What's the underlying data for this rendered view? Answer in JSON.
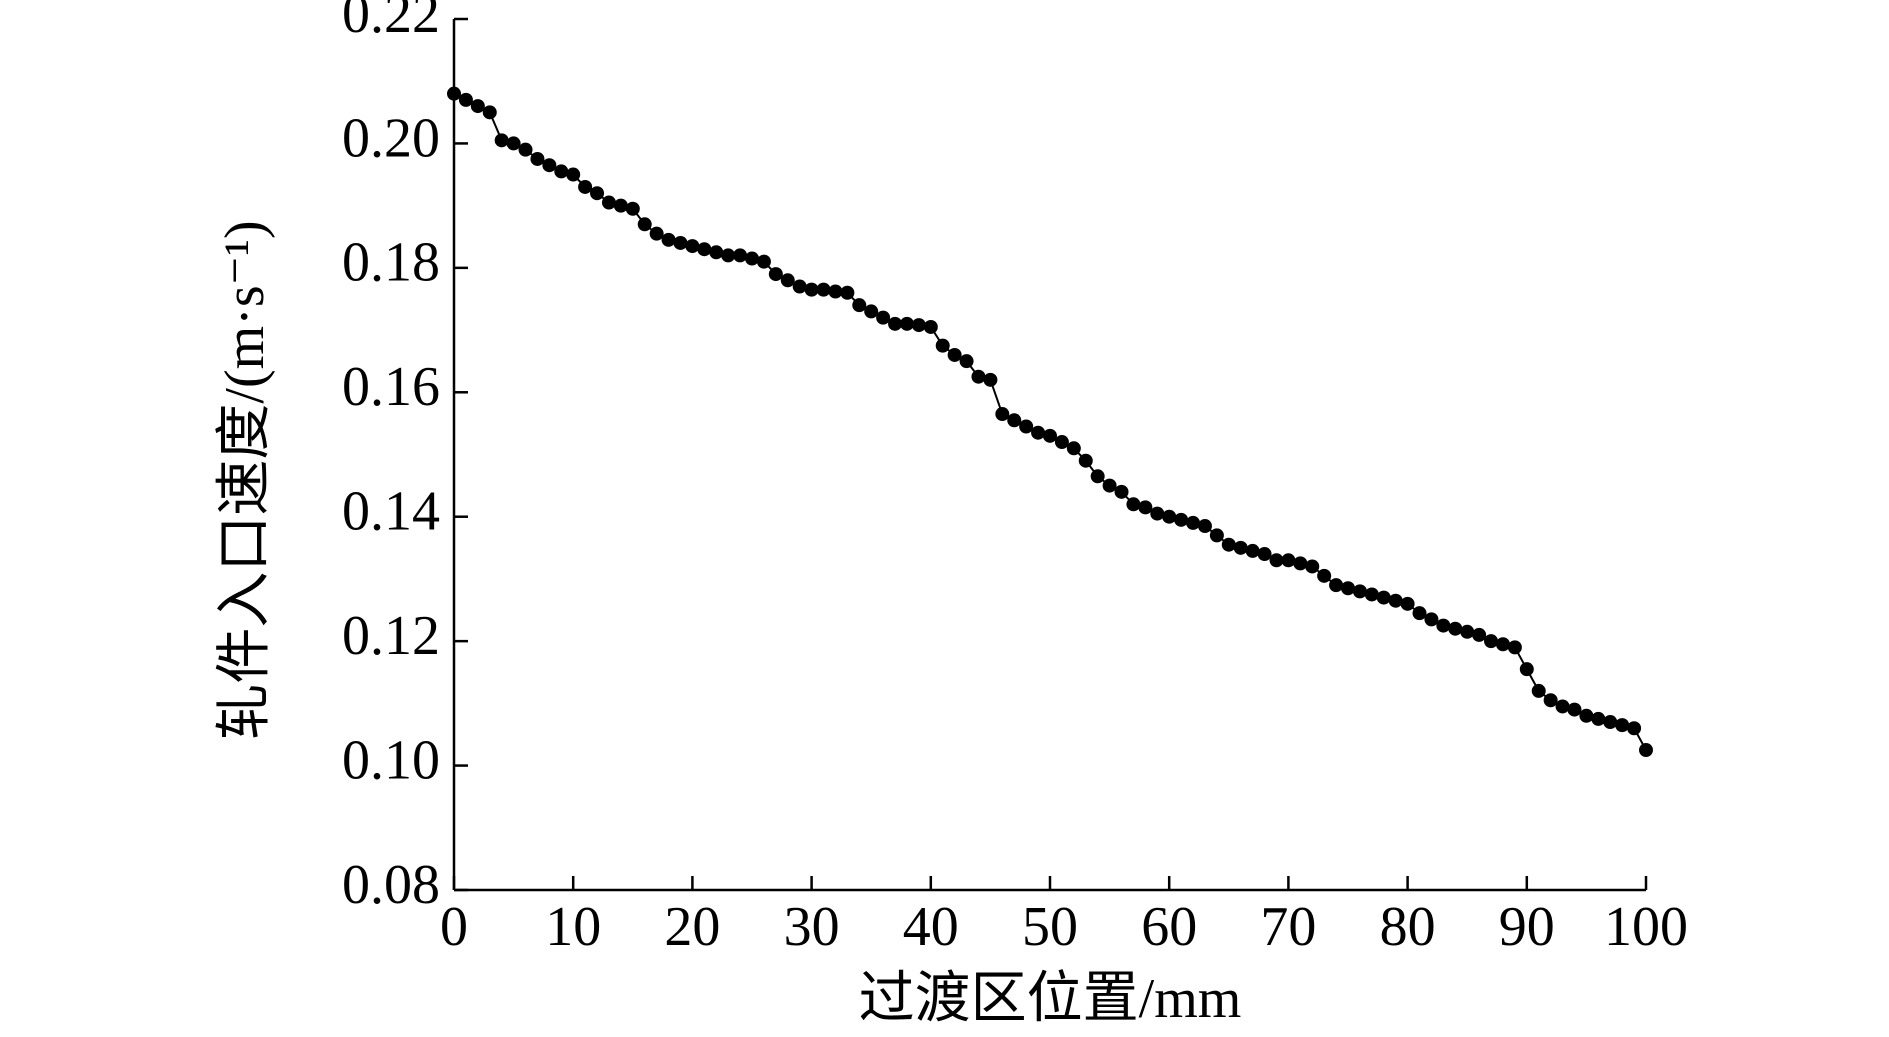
{
  "chart_data": {
    "type": "line",
    "x_label": "过渡区位置/mm",
    "y_label": "轧件入口速度/(m·s⁻¹)",
    "x": [
      0,
      1,
      2,
      3,
      4,
      5,
      6,
      7,
      8,
      9,
      10,
      11,
      12,
      13,
      14,
      15,
      16,
      17,
      18,
      19,
      20,
      21,
      22,
      23,
      24,
      25,
      26,
      27,
      28,
      29,
      30,
      31,
      32,
      33,
      34,
      35,
      36,
      37,
      38,
      39,
      40,
      41,
      42,
      43,
      44,
      45,
      46,
      47,
      48,
      49,
      50,
      51,
      52,
      53,
      54,
      55,
      56,
      57,
      58,
      59,
      60,
      61,
      62,
      63,
      64,
      65,
      66,
      67,
      68,
      69,
      70,
      71,
      72,
      73,
      74,
      75,
      76,
      77,
      78,
      79,
      80,
      81,
      82,
      83,
      84,
      85,
      86,
      87,
      88,
      89,
      90,
      91,
      92,
      93,
      94,
      95,
      96,
      97,
      98,
      99,
      100
    ],
    "values": [
      0.208,
      0.207,
      0.206,
      0.205,
      0.2005,
      0.2,
      0.199,
      0.1975,
      0.1965,
      0.1955,
      0.195,
      0.193,
      0.192,
      0.1905,
      0.19,
      0.1895,
      0.187,
      0.1855,
      0.1845,
      0.184,
      0.1835,
      0.183,
      0.1825,
      0.182,
      0.182,
      0.1815,
      0.181,
      0.179,
      0.178,
      0.177,
      0.1765,
      0.1765,
      0.1762,
      0.176,
      0.174,
      0.173,
      0.172,
      0.171,
      0.171,
      0.1708,
      0.1705,
      0.1675,
      0.166,
      0.165,
      0.1625,
      0.162,
      0.1565,
      0.1555,
      0.1545,
      0.1535,
      0.153,
      0.152,
      0.151,
      0.149,
      0.1465,
      0.145,
      0.144,
      0.142,
      0.1415,
      0.1405,
      0.14,
      0.1395,
      0.139,
      0.1385,
      0.137,
      0.1355,
      0.135,
      0.1345,
      0.134,
      0.133,
      0.133,
      0.1325,
      0.132,
      0.1305,
      0.129,
      0.1285,
      0.128,
      0.1275,
      0.127,
      0.1265,
      0.126,
      0.1245,
      0.1235,
      0.1225,
      0.122,
      0.1215,
      0.121,
      0.12,
      0.1195,
      0.119,
      0.1155,
      0.112,
      0.1105,
      0.1095,
      0.109,
      0.108,
      0.1075,
      0.107,
      0.1065,
      0.106,
      0.1025
    ],
    "color": "#000000",
    "xlim": [
      0,
      100
    ],
    "xticks": [
      0,
      10,
      20,
      30,
      40,
      50,
      60,
      70,
      80,
      90,
      100
    ],
    "ylim": [
      0.08,
      0.22
    ],
    "yticks": [
      0.08,
      {
        "value": 0.1,
        "label": "0.10"
      },
      0.12,
      0.14,
      0.16,
      0.18,
      {
        "value": 0.2,
        "label": "0.20"
      },
      0.22
    ]
  }
}
